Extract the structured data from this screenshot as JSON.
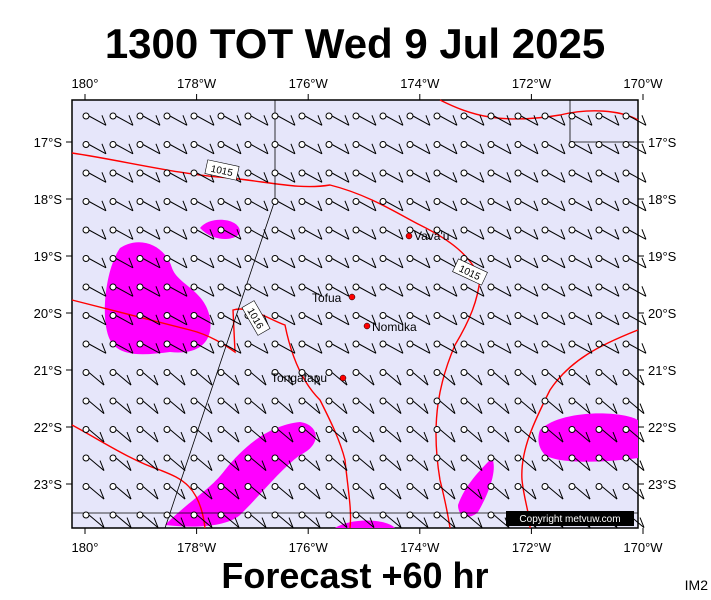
{
  "header": {
    "title": "1300 TOT Wed 9 Jul 2025"
  },
  "axes": {
    "top": [
      "180°",
      "178°W",
      "176°W",
      "174°W",
      "172°W",
      "170°W"
    ],
    "bottom": [
      "180°",
      "178°W",
      "176°W",
      "174°W",
      "172°W",
      "170°W"
    ],
    "left": [
      "17°S",
      "18°S",
      "19°S",
      "20°S",
      "21°S",
      "22°S",
      "23°S"
    ],
    "right": [
      "17°S",
      "18°S",
      "19°S",
      "20°S",
      "21°S",
      "22°S",
      "23°S"
    ]
  },
  "places": [
    "Vava'u",
    "Tofua",
    "Nomuka",
    "Tongatapu"
  ],
  "isobars": [
    "1015",
    "1015",
    "1016"
  ],
  "credit": "Copyright metvuw.com",
  "footer": {
    "title": "Forecast +60 hr",
    "code": "IM2"
  }
}
